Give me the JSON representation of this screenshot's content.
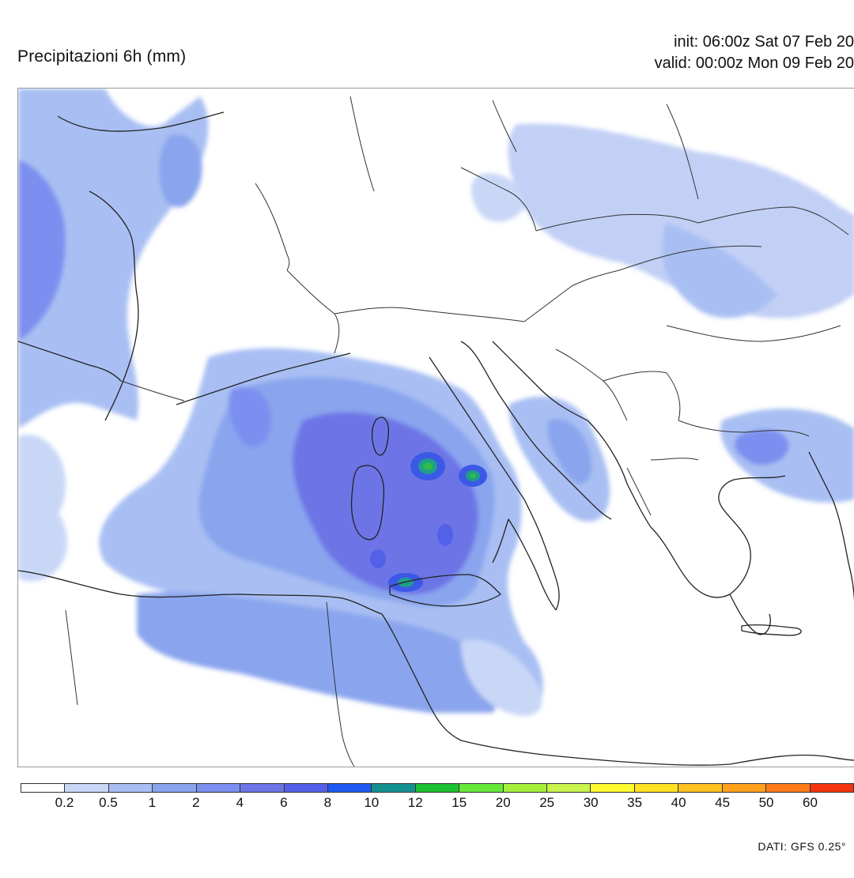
{
  "header": {
    "title": "Precipitazioni 6h (mm)",
    "init": "init: 06:00z Sat 07 Feb 20",
    "valid": "valid: 00:00z Mon 09 Feb 20"
  },
  "map": {
    "region": "Western and central Mediterranean, Italy, Balkans, Greece",
    "layer": "6h precipitation",
    "precip_colors": {
      "light": "#c9d7f7",
      "light2": "#a9bff3",
      "medium": "#8aa5ee",
      "medium2": "#7c8ff0",
      "heavy": "#6d74e6",
      "core_teal": "#1f9e8a",
      "core_green": "#2fbd4a"
    }
  },
  "colorbar": {
    "colors": [
      "#ffffff",
      "#c9d7f7",
      "#a9bff3",
      "#8aa5ee",
      "#7c8ff0",
      "#6d74e6",
      "#5360e8",
      "#1e5bf0",
      "#14908f",
      "#1ec034",
      "#66e83a",
      "#a6f03c",
      "#c9f34d",
      "#fffb2e",
      "#ffe323",
      "#ffc21f",
      "#ffa11c",
      "#ff7a18",
      "#f53410"
    ],
    "ticks": [
      "0.2",
      "0.5",
      "1",
      "2",
      "4",
      "6",
      "8",
      "10",
      "12",
      "15",
      "20",
      "25",
      "30",
      "35",
      "40",
      "45",
      "50",
      "60"
    ]
  },
  "footer": {
    "source": "DATI: GFS 0.25°"
  }
}
